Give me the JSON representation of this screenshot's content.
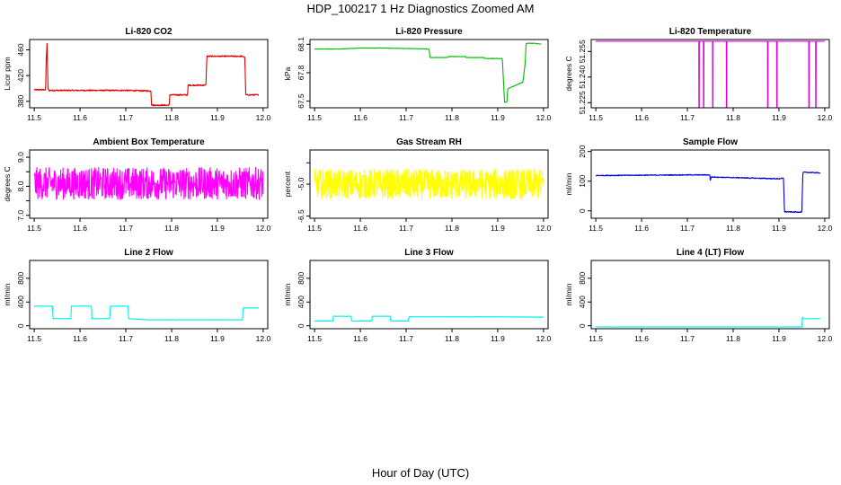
{
  "figure": {
    "title": "HDP_100217  1 Hz Diagnostics Zoomed AM",
    "xlabel": "Hour of Day (UTC)"
  },
  "chart_data": [
    {
      "type": "line",
      "title": "Li-820 CO2",
      "ylabel": "Licor ppm",
      "color": "#e00000",
      "xlim": [
        11.49,
        12.01
      ],
      "ylim": [
        370,
        476
      ],
      "xticks": [
        11.5,
        11.6,
        11.7,
        11.8,
        11.9,
        12.0
      ],
      "xtick_labels": [
        "11.5",
        "11.6",
        "11.7",
        "11.8",
        "11.9",
        "12.0"
      ],
      "yticks": [
        380,
        420,
        460
      ],
      "ytick_labels": [
        "380",
        "420",
        "460"
      ],
      "noise": 1.0,
      "x": [
        11.5,
        11.525,
        11.526,
        11.528,
        11.53,
        11.532,
        11.6,
        11.7,
        11.755,
        11.756,
        11.76,
        11.795,
        11.796,
        11.835,
        11.836,
        11.875,
        11.877,
        11.955,
        11.96,
        11.962,
        11.99
      ],
      "y": [
        398,
        398,
        440,
        470,
        400,
        397,
        397,
        397,
        396,
        375,
        374,
        374,
        390,
        390,
        405,
        405,
        450,
        450,
        448,
        390,
        390
      ]
    },
    {
      "type": "line",
      "title": "Li-820 Pressure",
      "ylabel": "kPa",
      "color": "#00bb00",
      "xlim": [
        11.49,
        12.01
      ],
      "ylim": [
        67.43,
        68.15
      ],
      "xticks": [
        11.5,
        11.6,
        11.7,
        11.8,
        11.9,
        12.0
      ],
      "xtick_labels": [
        "11.5",
        "11.6",
        "11.7",
        "11.8",
        "11.9",
        "12.0"
      ],
      "yticks": [
        67.5,
        67.8,
        68.1
      ],
      "ytick_labels": [
        "67.5",
        "67.8",
        "68.1"
      ],
      "noise": 0.002,
      "x": [
        11.5,
        11.55,
        11.6,
        11.65,
        11.7,
        11.75,
        11.751,
        11.752,
        11.79,
        11.791,
        11.83,
        11.831,
        11.87,
        11.871,
        11.91,
        11.915,
        11.916,
        11.92,
        11.922,
        11.945,
        11.955,
        11.96,
        11.962,
        11.98,
        11.995
      ],
      "y": [
        68.05,
        68.05,
        68.06,
        68.06,
        68.055,
        68.05,
        68.01,
        67.96,
        67.96,
        67.97,
        67.97,
        67.96,
        67.96,
        67.95,
        67.95,
        67.49,
        67.49,
        67.49,
        67.63,
        67.68,
        67.7,
        67.9,
        68.11,
        68.11,
        68.1
      ]
    },
    {
      "type": "line",
      "title": "Li-820 Temperature",
      "ylabel": "degrees C",
      "color": "#dd00dd",
      "xlim": [
        11.49,
        12.01
      ],
      "ylim": [
        51.222,
        51.262
      ],
      "xticks": [
        11.5,
        11.6,
        11.7,
        11.8,
        11.9,
        12.0
      ],
      "xtick_labels": [
        "11.5",
        "11.6",
        "11.7",
        "11.8",
        "11.9",
        "12.0"
      ],
      "yticks": [
        51.225,
        51.24,
        51.255
      ],
      "ytick_labels": [
        "51.225",
        "51.240",
        "51.255"
      ],
      "noise": 0,
      "x": [
        11.5,
        11.725,
        11.7252,
        11.726,
        11.7262,
        11.735,
        11.7352,
        11.736,
        11.7362,
        11.755,
        11.7552,
        11.756,
        11.7562,
        11.785,
        11.7852,
        11.786,
        11.7862,
        11.875,
        11.8752,
        11.876,
        11.8762,
        11.895,
        11.8952,
        11.896,
        11.8962,
        11.965,
        11.9652,
        11.966,
        11.9662,
        11.98,
        11.9802,
        11.981,
        11.9812,
        12.0
      ],
      "y": [
        51.261,
        51.261,
        51.222,
        51.222,
        51.261,
        51.261,
        51.222,
        51.222,
        51.261,
        51.261,
        51.222,
        51.222,
        51.261,
        51.261,
        51.222,
        51.222,
        51.261,
        51.261,
        51.222,
        51.222,
        51.261,
        51.261,
        51.222,
        51.222,
        51.261,
        51.261,
        51.222,
        51.222,
        51.261,
        51.261,
        51.222,
        51.222,
        51.261,
        51.261
      ]
    },
    {
      "type": "line",
      "title": "Ambient Box Temperature",
      "ylabel": "degrees C",
      "color": "#ff00ff",
      "xlim": [
        11.49,
        12.01
      ],
      "ylim": [
        6.9,
        9.25
      ],
      "xticks": [
        11.5,
        11.6,
        11.7,
        11.8,
        11.9,
        12.0
      ],
      "xtick_labels": [
        "11.5",
        "11.6",
        "11.7",
        "11.8",
        "11.9",
        "12.0"
      ],
      "yticks": [
        7.0,
        7.5,
        8.0,
        8.5,
        9.0
      ],
      "ytick_labels": [
        "7.0",
        "",
        "8.0",
        "",
        "9.0"
      ],
      "noise": 0.55,
      "x": [
        11.5,
        12.0
      ],
      "y": [
        8.1,
        8.1
      ]
    },
    {
      "type": "line",
      "title": "Gas Stream RH",
      "ylabel": "percent",
      "color": "#ffff00",
      "xlim": [
        11.49,
        12.01
      ],
      "ylim": [
        -6.6,
        -3.4
      ],
      "xticks": [
        11.5,
        11.6,
        11.7,
        11.8,
        11.9,
        12.0
      ],
      "xtick_labels": [
        "11.5",
        "11.6",
        "11.7",
        "11.8",
        "11.9",
        "12.0"
      ],
      "yticks": [
        -6.5,
        -5.0,
        -4.0
      ],
      "ytick_labels": [
        "-6.5",
        "-5.0",
        ""
      ],
      "noise": 0.7,
      "x": [
        11.5,
        12.0
      ],
      "y": [
        -5.0,
        -5.0
      ]
    },
    {
      "type": "line",
      "title": "Sample Flow",
      "ylabel": "ml/min",
      "color": "#0000cc",
      "xlim": [
        11.49,
        12.01
      ],
      "ylim": [
        -25,
        205
      ],
      "xticks": [
        11.5,
        11.6,
        11.7,
        11.8,
        11.9,
        12.0
      ],
      "xtick_labels": [
        "11.5",
        "11.6",
        "11.7",
        "11.8",
        "11.9",
        "12.0"
      ],
      "yticks": [
        0,
        100,
        200
      ],
      "ytick_labels": [
        "0",
        "100",
        "200"
      ],
      "noise": 1.5,
      "x": [
        11.5,
        11.6,
        11.7,
        11.749,
        11.75,
        11.752,
        11.8,
        11.85,
        11.9,
        11.91,
        11.912,
        11.93,
        11.95,
        11.952,
        11.953,
        11.99
      ],
      "y": [
        119,
        120,
        121,
        121,
        102,
        114,
        112,
        110,
        108,
        110,
        -3,
        -4,
        -4,
        118,
        130,
        128
      ]
    },
    {
      "type": "line",
      "title": "Line 2 Flow",
      "ylabel": "ml/min",
      "color": "#00eeee",
      "xlim": [
        11.49,
        12.01
      ],
      "ylim": [
        -50,
        1100
      ],
      "xticks": [
        11.5,
        11.6,
        11.7,
        11.8,
        11.9,
        12.0
      ],
      "xtick_labels": [
        "11.5",
        "11.6",
        "11.7",
        "11.8",
        "11.9",
        "12.0"
      ],
      "yticks": [
        0,
        400,
        800
      ],
      "ytick_labels": [
        "0",
        "400",
        "800"
      ],
      "noise": 3,
      "x": [
        11.5,
        11.54,
        11.541,
        11.58,
        11.581,
        11.625,
        11.626,
        11.665,
        11.666,
        11.705,
        11.706,
        11.75,
        11.8,
        11.9,
        11.955,
        11.956,
        11.99
      ],
      "y": [
        330,
        330,
        120,
        120,
        330,
        330,
        120,
        120,
        330,
        330,
        120,
        100,
        100,
        100,
        100,
        300,
        300
      ]
    },
    {
      "type": "line",
      "title": "Line 3 Flow",
      "ylabel": "ml/min",
      "color": "#00eeee",
      "xlim": [
        11.49,
        12.01
      ],
      "ylim": [
        -50,
        1100
      ],
      "xticks": [
        11.5,
        11.6,
        11.7,
        11.8,
        11.9,
        12.0
      ],
      "xtick_labels": [
        "11.5",
        "11.6",
        "11.7",
        "11.8",
        "11.9",
        "12.0"
      ],
      "yticks": [
        0,
        400,
        800
      ],
      "ytick_labels": [
        "0",
        "400",
        "800"
      ],
      "noise": 3,
      "x": [
        11.5,
        11.54,
        11.541,
        11.58,
        11.581,
        11.625,
        11.626,
        11.665,
        11.666,
        11.705,
        11.706,
        11.8,
        11.9,
        12.0
      ],
      "y": [
        80,
        80,
        160,
        160,
        80,
        80,
        160,
        160,
        80,
        80,
        150,
        150,
        150,
        145
      ]
    },
    {
      "type": "line",
      "title": "Line 4 (LT) Flow",
      "ylabel": "ml/min",
      "color": "#00eeee",
      "xlim": [
        11.49,
        12.01
      ],
      "ylim": [
        -50,
        1100
      ],
      "xticks": [
        11.5,
        11.6,
        11.7,
        11.8,
        11.9,
        12.0
      ],
      "xtick_labels": [
        "11.5",
        "11.6",
        "11.7",
        "11.8",
        "11.9",
        "12.0"
      ],
      "yticks": [
        0,
        400,
        800
      ],
      "ytick_labels": [
        "0",
        "400",
        "800"
      ],
      "noise": 2,
      "x": [
        11.5,
        11.7,
        11.9,
        11.95,
        11.951,
        11.953,
        11.99
      ],
      "y": [
        -20,
        -20,
        -20,
        -20,
        150,
        120,
        120
      ]
    }
  ]
}
